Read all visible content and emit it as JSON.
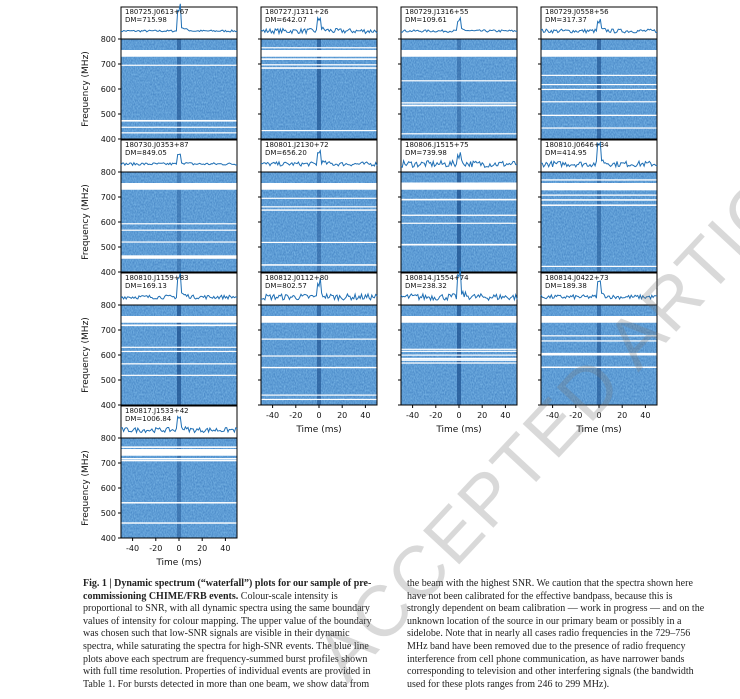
{
  "figure": {
    "time_axis": {
      "label": "Time (ms)",
      "xlim": [
        -50,
        50
      ],
      "xticks": [
        -40,
        -20,
        0,
        20,
        40
      ]
    },
    "frequency_axis": {
      "label": "Frequency (MHz)",
      "ylim": [
        400,
        800
      ],
      "yticks": [
        400,
        500,
        600,
        700,
        800
      ]
    },
    "panels": [
      {
        "name": "180725.J0613+67",
        "dm": "DM=715.98"
      },
      {
        "name": "180727.J1311+26",
        "dm": "DM=642.07"
      },
      {
        "name": "180729.J1316+55",
        "dm": "DM=109.61"
      },
      {
        "name": "180729.J0558+56",
        "dm": "DM=317.37"
      },
      {
        "name": "180730.J0353+87",
        "dm": "DM=849.05"
      },
      {
        "name": "180801.J2130+72",
        "dm": "DM=656.20"
      },
      {
        "name": "180806.J1515+75",
        "dm": "DM=739.98"
      },
      {
        "name": "180810.J0646+34",
        "dm": "DM=414.95"
      },
      {
        "name": "180810.J1159+83",
        "dm": "DM=169.13"
      },
      {
        "name": "180812.J0112+80",
        "dm": "DM=802.57"
      },
      {
        "name": "180814.J1554+74",
        "dm": "DM=238.32"
      },
      {
        "name": "180814.J0422+73",
        "dm": "DM=189.38"
      },
      {
        "name": "180817.J1533+42",
        "dm": "DM=1006.84"
      }
    ]
  },
  "caption": {
    "label": "Fig. 1 |",
    "title": "Dynamic spectrum (“waterfall”) plots for our sample of pre-commissioning CHIME/FRB events.",
    "text": "Colour-scale intensity is proportional to SNR, with all dynamic spectra using the same boundary values of intensity for colour mapping. The upper value of the boundary was chosen such that low-SNR signals are visible in their dynamic spectra, while saturating the spectra for high-SNR events. The blue line plots above each spectrum are frequency-summed burst profiles shown with full time resolution. Properties of individual events are provided in Table 1. For bursts detected in more than one beam, we show data from the beam with the highest SNR. We caution that the spectra shown here have not been calibrated for the effective bandpass, because this is strongly dependent on beam calibration — work in progress — and on the unknown location of the source in our primary beam or possibly in a sidelobe. Note that in nearly all cases radio frequencies in the 729–756 MHz band have been removed due to the presence of radio frequency interference from cell phone communication, as have narrower bands corresponding to television and other interfering signals (the bandwidth used for these plots ranges from 246 to 299 MHz)."
  },
  "watermark": "ACCEPTED ARTICLE PREVIEW"
}
